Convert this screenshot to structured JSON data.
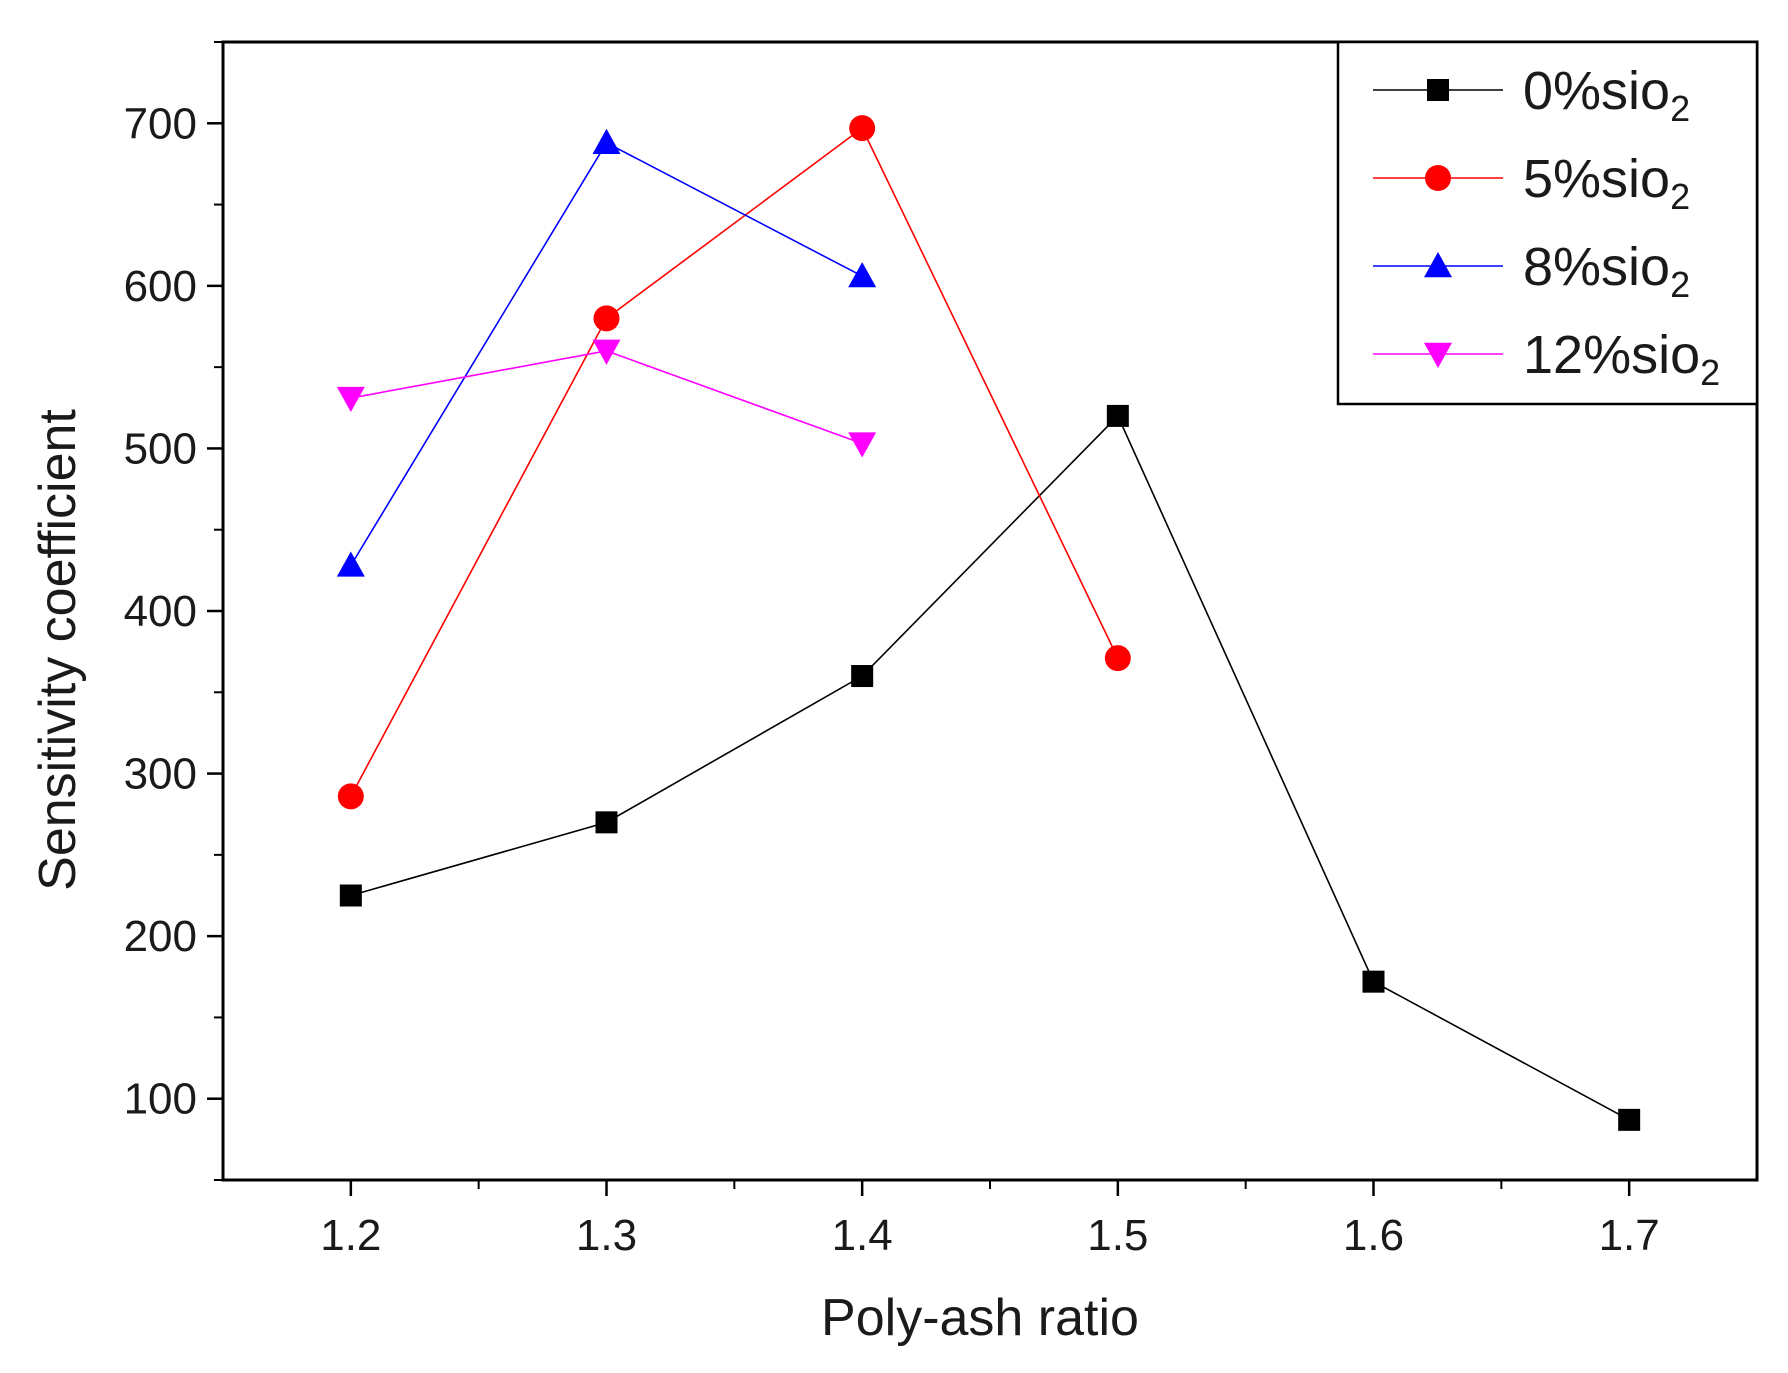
{
  "chart_data": {
    "type": "line",
    "title": "",
    "xlabel": "Poly-ash ratio",
    "ylabel": "Sensitivity coefficient",
    "xlim": [
      1.15,
      1.75
    ],
    "ylim": [
      50,
      750
    ],
    "x_ticks": [
      1.2,
      1.3,
      1.4,
      1.5,
      1.6,
      1.7
    ],
    "x_tick_labels": [
      "1.2",
      "1.3",
      "1.4",
      "1.5",
      "1.6",
      "1.7"
    ],
    "y_ticks": [
      100,
      200,
      300,
      400,
      500,
      600,
      700
    ],
    "y_tick_labels": [
      "100",
      "200",
      "300",
      "400",
      "500",
      "600",
      "700"
    ],
    "grid": false,
    "legend_position": "top-right",
    "series": [
      {
        "name": "0%sio2",
        "label_main": "0%sio",
        "label_sub": "2",
        "color": "#000000",
        "marker": "square",
        "x": [
          1.2,
          1.3,
          1.4,
          1.5,
          1.6,
          1.7
        ],
        "values": [
          225,
          270,
          360,
          520,
          172,
          87
        ]
      },
      {
        "name": "5%sio2",
        "label_main": "5%sio",
        "label_sub": "2",
        "color": "#ff0000",
        "marker": "circle",
        "x": [
          1.2,
          1.3,
          1.4,
          1.5
        ],
        "values": [
          286,
          580,
          697,
          371
        ]
      },
      {
        "name": "8%sio2",
        "label_main": "8%sio",
        "label_sub": "2",
        "color": "#0000ff",
        "marker": "triangle-up",
        "x": [
          1.2,
          1.3,
          1.4
        ],
        "values": [
          428,
          688,
          606
        ]
      },
      {
        "name": "12%sio2",
        "label_main": "12%sio",
        "label_sub": "2",
        "color": "#ff00ff",
        "marker": "triangle-down",
        "x": [
          1.2,
          1.3,
          1.4
        ],
        "values": [
          531,
          560,
          503
        ]
      }
    ]
  }
}
